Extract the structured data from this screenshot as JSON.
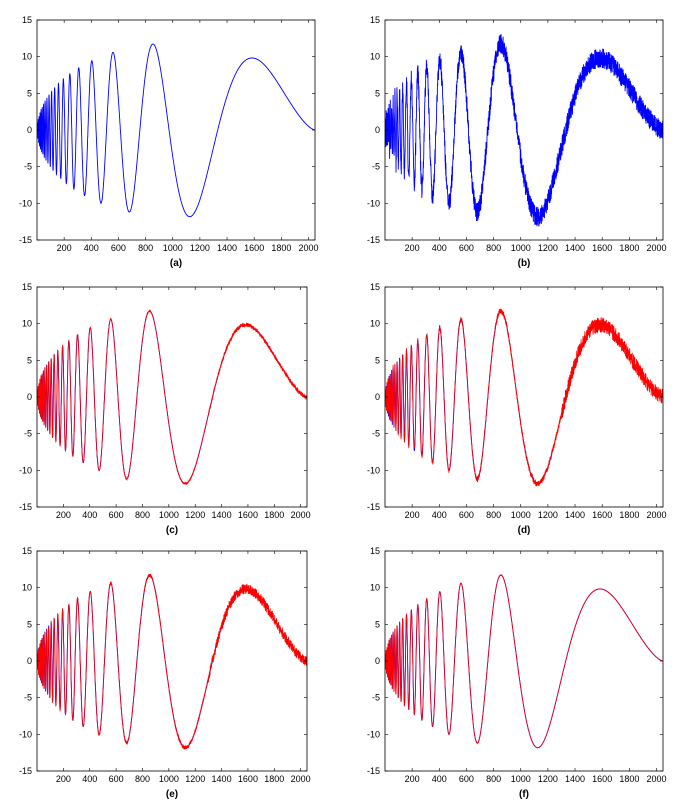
{
  "chart_data": [
    {
      "type": "line",
      "caption": "(a)",
      "description": "Doppler-like chirp signal, clean",
      "xlim": [
        0,
        2048
      ],
      "ylim": [
        -15,
        15
      ],
      "xticks": [
        200,
        400,
        600,
        800,
        1000,
        1200,
        1400,
        1600,
        1800,
        2000
      ],
      "yticks": [
        15,
        10,
        5,
        0,
        -5,
        -10,
        -15
      ],
      "series": [
        {
          "color": "#0000ff",
          "noise": 0,
          "approx": false
        }
      ],
      "peaks": [
        {
          "x": 860,
          "y": 12
        },
        {
          "x": 1590,
          "y": 10
        }
      ],
      "troughs": [
        {
          "x": 1115,
          "y": -12
        }
      ]
    },
    {
      "type": "line",
      "caption": "(b)",
      "xlim": [
        0,
        2048
      ],
      "ylim": [
        -15,
        15
      ],
      "xticks": [
        200,
        400,
        600,
        800,
        1000,
        1200,
        1400,
        1600,
        1800,
        2000
      ],
      "yticks": [
        15,
        10,
        5,
        0,
        -5,
        -10,
        -15
      ],
      "series": [
        {
          "color": "#0000ff",
          "noise": 0.9,
          "approx": false
        }
      ]
    },
    {
      "type": "line",
      "caption": "(c)",
      "xlim": [
        0,
        2048
      ],
      "ylim": [
        -15,
        15
      ],
      "xticks": [
        200,
        400,
        600,
        800,
        1000,
        1200,
        1400,
        1600,
        1800,
        2000
      ],
      "yticks": [
        15,
        10,
        5,
        0,
        -5,
        -10,
        -15
      ],
      "series": [
        {
          "color": "#0000ff",
          "noise": 0,
          "approx": false
        },
        {
          "color": "#ff0000",
          "noise": 0.12,
          "approx": true
        }
      ]
    },
    {
      "type": "line",
      "caption": "(d)",
      "xlim": [
        0,
        2048
      ],
      "ylim": [
        -15,
        15
      ],
      "xticks": [
        200,
        400,
        600,
        800,
        1000,
        1200,
        1400,
        1600,
        1800,
        2000
      ],
      "yticks": [
        15,
        10,
        5,
        0,
        -5,
        -10,
        -15
      ],
      "series": [
        {
          "color": "#0000ff",
          "noise": 0,
          "approx": false
        },
        {
          "color": "#ff0000",
          "noise": 0.45,
          "approx": true
        }
      ]
    },
    {
      "type": "line",
      "caption": "(e)",
      "xlim": [
        0,
        2048
      ],
      "ylim": [
        -15,
        15
      ],
      "xticks": [
        200,
        400,
        600,
        800,
        1000,
        1200,
        1400,
        1600,
        1800,
        2000
      ],
      "yticks": [
        15,
        10,
        5,
        0,
        -5,
        -10,
        -15
      ],
      "series": [
        {
          "color": "#0000ff",
          "noise": 0,
          "approx": false
        },
        {
          "color": "#ff0000",
          "noise": 0.3,
          "approx": true
        }
      ]
    },
    {
      "type": "line",
      "caption": "(f)",
      "xlim": [
        0,
        2048
      ],
      "ylim": [
        -15,
        15
      ],
      "xticks": [
        200,
        400,
        600,
        800,
        1000,
        1200,
        1400,
        1600,
        1800,
        2000
      ],
      "yticks": [
        15,
        10,
        5,
        0,
        -5,
        -10,
        -15
      ],
      "series": [
        {
          "color": "#0000ff",
          "noise": 0,
          "approx": false
        },
        {
          "color": "#ff0000",
          "noise": 0.05,
          "approx": true,
          "x_max": 1050
        }
      ]
    }
  ]
}
